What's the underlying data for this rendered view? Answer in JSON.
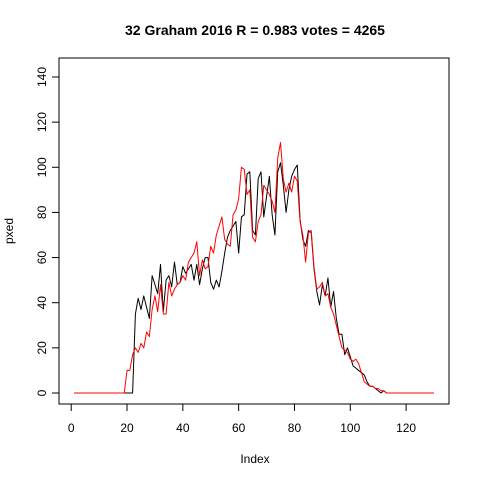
{
  "chart_data": {
    "type": "line",
    "title": "32 Graham 2016 R = 0.983 votes = 4265",
    "xlabel": "Index",
    "ylabel": "pxed",
    "xlim": [
      1,
      130
    ],
    "ylim": [
      0,
      140
    ],
    "xticks": [
      0,
      20,
      40,
      60,
      80,
      100,
      120
    ],
    "yticks": [
      0,
      20,
      40,
      60,
      80,
      100,
      120,
      140
    ],
    "grid": false,
    "series": [
      {
        "color": "#000000",
        "values": [
          0,
          0,
          0,
          0,
          0,
          0,
          0,
          0,
          0,
          0,
          0,
          0,
          0,
          0,
          0,
          0,
          0,
          0,
          0,
          0,
          0,
          0,
          35,
          42,
          37,
          43,
          38,
          33,
          52,
          48,
          44,
          57,
          36,
          50,
          52,
          47,
          58,
          48,
          49,
          56,
          53,
          55,
          57,
          50,
          57,
          48,
          55,
          60,
          60,
          49,
          46,
          50,
          47,
          54,
          62,
          69,
          72,
          74,
          76,
          62,
          78,
          79,
          97,
          98,
          72,
          70,
          95,
          98,
          78,
          87,
          96,
          79,
          70,
          98,
          102,
          92,
          80,
          90,
          96,
          99,
          101,
          77,
          68,
          65,
          72,
          71,
          55,
          45,
          39,
          48,
          43,
          51,
          38,
          45,
          33,
          26,
          26,
          17,
          20,
          16,
          12,
          11,
          10,
          9,
          8,
          5,
          3,
          3,
          2,
          1,
          0,
          1,
          0,
          0,
          0,
          0,
          0,
          0,
          0,
          0,
          0,
          0,
          0,
          0,
          0,
          0
        ]
      },
      {
        "color": "#ff0000",
        "values": [
          0,
          0,
          0,
          0,
          0,
          0,
          0,
          0,
          0,
          0,
          0,
          0,
          0,
          0,
          0,
          0,
          0,
          0,
          0,
          10,
          10,
          17,
          20,
          18,
          22,
          20,
          27,
          25,
          37,
          43,
          36,
          48,
          35,
          35,
          49,
          43,
          46,
          48,
          49,
          52,
          50,
          58,
          60,
          62,
          67,
          52,
          59,
          55,
          56,
          65,
          62,
          70,
          74,
          78,
          68,
          66,
          65,
          79,
          81,
          86,
          100,
          99,
          88,
          90,
          69,
          67,
          76,
          79,
          92,
          90,
          88,
          85,
          80,
          104,
          111,
          95,
          89,
          93,
          89,
          96,
          94,
          76,
          70,
          58,
          71,
          72,
          56,
          46,
          47,
          49,
          43,
          44,
          38,
          35,
          30,
          25,
          20,
          19,
          18,
          15,
          14,
          15,
          13,
          9,
          5,
          4,
          3,
          3,
          2,
          2,
          1,
          1,
          0,
          0,
          0,
          0,
          0,
          0,
          0,
          0,
          0,
          0,
          0,
          0,
          0,
          0,
          0,
          0,
          0,
          0
        ]
      }
    ]
  }
}
